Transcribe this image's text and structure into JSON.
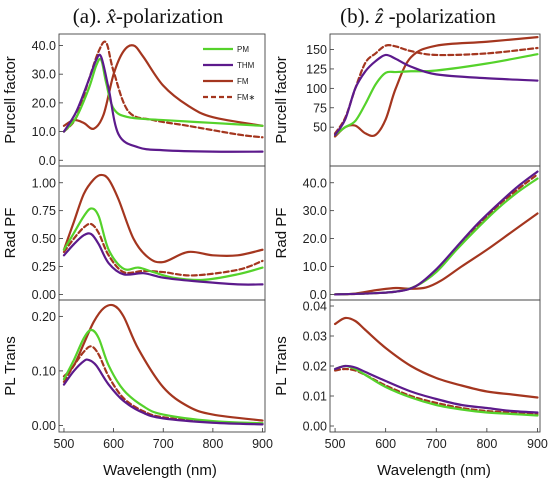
{
  "colors": {
    "PM": "#55d22b",
    "THM": "#5c1a8c",
    "FM": "#a4361f",
    "FMstar": "#a4361f"
  },
  "legend": [
    {
      "key": "PM",
      "label": "PM",
      "dashed": false
    },
    {
      "key": "THM",
      "label": "THM",
      "dashed": false
    },
    {
      "key": "FM",
      "label": "FM",
      "dashed": false
    },
    {
      "key": "FMstar",
      "label": "FM∗",
      "dashed": true
    }
  ],
  "columns": [
    {
      "title_prefix": "(a). ",
      "title_math": "x̂",
      "title_suffix": "-polarization"
    },
    {
      "title_prefix": "(b). ",
      "title_math": "ẑ",
      "title_suffix": " -polarization"
    }
  ],
  "x_axis_label": "Wavelength (nm)",
  "chart_data": [
    {
      "id": "a-purcell",
      "type": "line",
      "ylabel": "Purcell factor",
      "xlim": [
        490,
        905
      ],
      "ylim": [
        -2,
        44
      ],
      "xticks": [],
      "yticks": [
        0.0,
        10.0,
        20.0,
        30.0,
        40.0
      ],
      "ytick_labels": [
        "0.0",
        "10.0",
        "20.0",
        "30.0",
        "40.0"
      ],
      "series": [
        {
          "key": "PM",
          "x": [
            500,
            525,
            550,
            565,
            575,
            585,
            600,
            630,
            700,
            800,
            900
          ],
          "y": [
            10,
            15,
            25,
            33,
            35,
            27,
            18,
            15,
            14,
            13,
            12
          ]
        },
        {
          "key": "THM",
          "x": [
            500,
            525,
            550,
            565,
            575,
            590,
            610,
            650,
            700,
            800,
            900
          ],
          "y": [
            10,
            17,
            28,
            35,
            36,
            25,
            9,
            4.5,
            3.5,
            3,
            3
          ]
        },
        {
          "key": "FM",
          "x": [
            500,
            520,
            540,
            560,
            580,
            600,
            620,
            640,
            660,
            700,
            750,
            800,
            900
          ],
          "y": [
            12,
            14,
            13,
            11,
            16,
            30,
            38,
            40,
            36,
            26,
            19,
            15,
            12
          ]
        },
        {
          "key": "FMstar",
          "x": [
            500,
            525,
            550,
            570,
            585,
            600,
            630,
            680,
            750,
            850,
            900
          ],
          "y": [
            10,
            15,
            28,
            38,
            41,
            31,
            17,
            14,
            12,
            9,
            8
          ]
        }
      ]
    },
    {
      "id": "b-purcell",
      "type": "line",
      "ylabel": "Purcell factor",
      "xlim": [
        490,
        905
      ],
      "ylim": [
        0,
        170
      ],
      "xticks": [],
      "yticks": [
        50,
        75,
        100,
        125,
        150
      ],
      "ytick_labels": [
        "50",
        "75",
        "100",
        "125",
        "150"
      ],
      "series": [
        {
          "key": "PM",
          "x": [
            500,
            520,
            540,
            560,
            580,
            600,
            620,
            650,
            700,
            800,
            900
          ],
          "y": [
            40,
            50,
            58,
            80,
            105,
            120,
            121,
            122,
            123,
            132,
            144
          ]
        },
        {
          "key": "THM",
          "x": [
            500,
            520,
            540,
            560,
            580,
            600,
            620,
            650,
            700,
            800,
            900
          ],
          "y": [
            40,
            60,
            100,
            122,
            135,
            143,
            138,
            128,
            118,
            113,
            110
          ]
        },
        {
          "key": "FM",
          "x": [
            500,
            520,
            540,
            560,
            580,
            600,
            620,
            650,
            700,
            800,
            900
          ],
          "y": [
            38,
            50,
            52,
            42,
            40,
            60,
            100,
            140,
            155,
            160,
            166
          ]
        },
        {
          "key": "FMstar",
          "x": [
            500,
            520,
            540,
            560,
            580,
            600,
            620,
            650,
            700,
            800,
            900
          ],
          "y": [
            42,
            62,
            100,
            133,
            145,
            155,
            154,
            148,
            143,
            145,
            152
          ]
        }
      ]
    },
    {
      "id": "a-radpf",
      "type": "line",
      "ylabel": "Rad PF",
      "xlim": [
        490,
        905
      ],
      "ylim": [
        -0.05,
        1.15
      ],
      "xticks": [],
      "yticks": [
        0.0,
        0.25,
        0.5,
        0.75,
        1.0
      ],
      "ytick_labels": [
        "0.00",
        "0.25",
        "0.50",
        "0.75",
        "1.00"
      ],
      "series": [
        {
          "key": "PM",
          "x": [
            500,
            520,
            540,
            555,
            570,
            590,
            620,
            650,
            680,
            720,
            780,
            850,
            900
          ],
          "y": [
            0.4,
            0.55,
            0.7,
            0.77,
            0.7,
            0.4,
            0.23,
            0.24,
            0.2,
            0.15,
            0.13,
            0.18,
            0.24
          ]
        },
        {
          "key": "THM",
          "x": [
            500,
            520,
            540,
            555,
            570,
            590,
            620,
            660,
            700,
            760,
            850,
            900
          ],
          "y": [
            0.35,
            0.45,
            0.53,
            0.54,
            0.45,
            0.28,
            0.18,
            0.19,
            0.15,
            0.12,
            0.09,
            0.09
          ]
        },
        {
          "key": "FM",
          "x": [
            500,
            520,
            540,
            560,
            575,
            590,
            610,
            640,
            670,
            700,
            750,
            800,
            850,
            900
          ],
          "y": [
            0.4,
            0.65,
            0.9,
            1.03,
            1.07,
            1.03,
            0.85,
            0.5,
            0.33,
            0.29,
            0.38,
            0.35,
            0.35,
            0.4
          ]
        },
        {
          "key": "FMstar",
          "x": [
            500,
            520,
            540,
            555,
            570,
            590,
            620,
            660,
            700,
            760,
            850,
            900
          ],
          "y": [
            0.38,
            0.5,
            0.6,
            0.63,
            0.55,
            0.35,
            0.2,
            0.21,
            0.2,
            0.17,
            0.22,
            0.3
          ]
        }
      ]
    },
    {
      "id": "b-radpf",
      "type": "line",
      "ylabel": "Rad PF",
      "xlim": [
        490,
        905
      ],
      "ylim": [
        -2,
        46
      ],
      "xticks": [],
      "yticks": [
        0.0,
        10.0,
        20.0,
        30.0,
        40.0
      ],
      "ytick_labels": [
        "0.0",
        "10.0",
        "20.0",
        "30.0",
        "40.0"
      ],
      "series": [
        {
          "key": "PM",
          "x": [
            500,
            560,
            620,
            660,
            700,
            740,
            780,
            820,
            860,
            900
          ],
          "y": [
            0,
            0.3,
            1,
            3,
            8,
            16,
            23.5,
            30.5,
            36.5,
            41.5
          ]
        },
        {
          "key": "THM",
          "x": [
            500,
            560,
            620,
            660,
            700,
            740,
            780,
            820,
            860,
            900
          ],
          "y": [
            0,
            0.3,
            1,
            3,
            9,
            17,
            25,
            32,
            38.5,
            44
          ]
        },
        {
          "key": "FM",
          "x": [
            500,
            540,
            580,
            620,
            650,
            680,
            710,
            750,
            800,
            850,
            900
          ],
          "y": [
            0,
            0.3,
            1.5,
            2.3,
            2.0,
            2.5,
            5,
            10,
            16,
            22.5,
            29
          ]
        },
        {
          "key": "FMstar",
          "x": [
            500,
            560,
            620,
            660,
            700,
            740,
            780,
            820,
            860,
            900
          ],
          "y": [
            0,
            0.3,
            1,
            3,
            8.5,
            16.5,
            24,
            31.5,
            37.5,
            43
          ]
        }
      ]
    },
    {
      "id": "a-pltrans",
      "type": "line",
      "ylabel": "PL Trans",
      "xlim": [
        490,
        905
      ],
      "ylim": [
        -0.012,
        0.23
      ],
      "xticks": [
        500,
        600,
        700,
        800,
        900
      ],
      "yticks": [
        0.0,
        0.1,
        0.2
      ],
      "ytick_labels": [
        "0.00",
        "0.10",
        "0.20"
      ],
      "series": [
        {
          "key": "PM",
          "x": [
            500,
            520,
            540,
            555,
            570,
            590,
            620,
            660,
            700,
            800,
            900
          ],
          "y": [
            0.085,
            0.12,
            0.16,
            0.175,
            0.16,
            0.11,
            0.065,
            0.035,
            0.02,
            0.008,
            0.004
          ]
        },
        {
          "key": "THM",
          "x": [
            500,
            520,
            540,
            550,
            565,
            590,
            620,
            660,
            700,
            800,
            900
          ],
          "y": [
            0.075,
            0.1,
            0.118,
            0.12,
            0.11,
            0.075,
            0.045,
            0.023,
            0.013,
            0.005,
            0.002
          ]
        },
        {
          "key": "FM",
          "x": [
            500,
            520,
            540,
            560,
            580,
            600,
            620,
            650,
            700,
            750,
            800,
            900
          ],
          "y": [
            0.09,
            0.11,
            0.15,
            0.19,
            0.215,
            0.22,
            0.2,
            0.14,
            0.07,
            0.035,
            0.02,
            0.009
          ]
        },
        {
          "key": "FMstar",
          "x": [
            500,
            520,
            540,
            555,
            570,
            590,
            620,
            660,
            700,
            800,
            900
          ],
          "y": [
            0.08,
            0.11,
            0.135,
            0.145,
            0.13,
            0.09,
            0.05,
            0.026,
            0.015,
            0.006,
            0.003
          ]
        }
      ]
    },
    {
      "id": "b-pltrans",
      "type": "line",
      "ylabel": "PL Trans",
      "xlim": [
        490,
        905
      ],
      "ylim": [
        -0.002,
        0.042
      ],
      "xticks": [
        500,
        600,
        700,
        800,
        900
      ],
      "yticks": [
        0.0,
        0.01,
        0.02,
        0.03,
        0.04
      ],
      "ytick_labels": [
        "0.00",
        "0.01",
        "0.02",
        "0.03",
        "0.04"
      ],
      "series": [
        {
          "key": "PM",
          "x": [
            500,
            520,
            540,
            560,
            600,
            650,
            700,
            750,
            800,
            850,
            900
          ],
          "y": [
            0.019,
            0.02,
            0.019,
            0.017,
            0.013,
            0.0095,
            0.007,
            0.0055,
            0.0045,
            0.004,
            0.0035
          ]
        },
        {
          "key": "THM",
          "x": [
            500,
            520,
            540,
            560,
            600,
            650,
            700,
            750,
            800,
            850,
            900
          ],
          "y": [
            0.019,
            0.02,
            0.0195,
            0.018,
            0.015,
            0.0115,
            0.009,
            0.007,
            0.006,
            0.005,
            0.0045
          ]
        },
        {
          "key": "FM",
          "x": [
            500,
            520,
            540,
            560,
            600,
            650,
            700,
            750,
            800,
            850,
            900
          ],
          "y": [
            0.034,
            0.036,
            0.035,
            0.032,
            0.026,
            0.02,
            0.016,
            0.0135,
            0.0115,
            0.0105,
            0.0095
          ]
        },
        {
          "key": "FMstar",
          "x": [
            500,
            520,
            540,
            560,
            600,
            650,
            700,
            750,
            800,
            850,
            900
          ],
          "y": [
            0.0185,
            0.019,
            0.0185,
            0.017,
            0.0135,
            0.01,
            0.0077,
            0.006,
            0.005,
            0.0045,
            0.004
          ]
        }
      ]
    }
  ]
}
